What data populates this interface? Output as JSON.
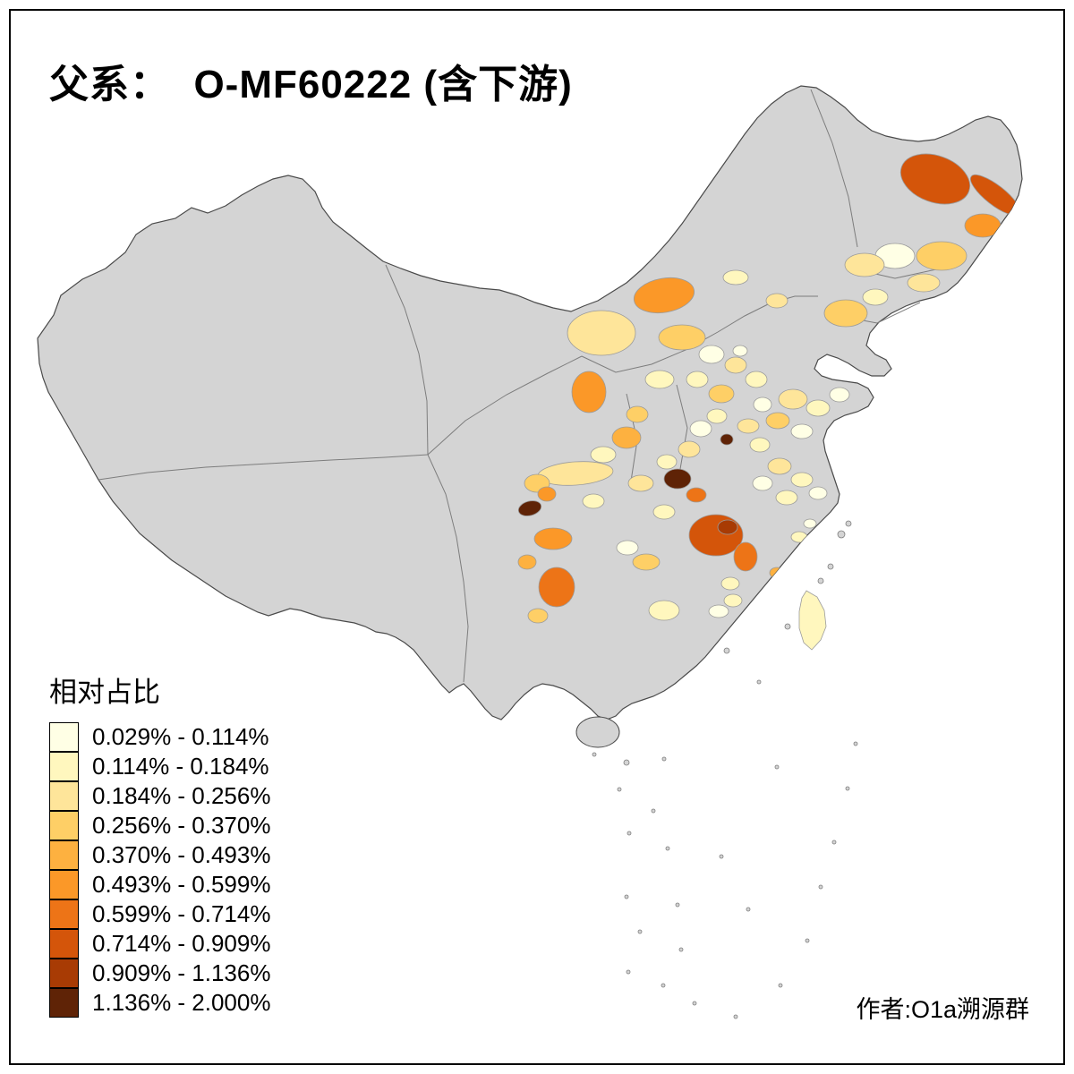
{
  "title": "父系：  O-MF60222 (含下游)",
  "author_credit": "作者:O1a溯源群",
  "legend": {
    "title": "相对占比",
    "bins": [
      {
        "label": "0.029% - 0.114%",
        "color": "#FFFFE5"
      },
      {
        "label": "0.114% - 0.184%",
        "color": "#FFF7BE"
      },
      {
        "label": "0.184% - 0.256%",
        "color": "#FEE59A"
      },
      {
        "label": "0.256% - 0.370%",
        "color": "#FECF66"
      },
      {
        "label": "0.370% - 0.493%",
        "color": "#FDB140"
      },
      {
        "label": "0.493% - 0.599%",
        "color": "#FB9828"
      },
      {
        "label": "0.599% - 0.714%",
        "color": "#ED7417"
      },
      {
        "label": "0.714% - 0.909%",
        "color": "#D4550A"
      },
      {
        "label": "0.909% - 1.136%",
        "color": "#A83B04"
      },
      {
        "label": "1.136% - 2.000%",
        "color": "#5F2306"
      }
    ]
  },
  "map": {
    "type": "choropleth",
    "base_fill": "#D4D4D4",
    "border_stroke": "#4A4A4A",
    "province_stroke": "#7D7D7D",
    "region_outline": "#9B9B9B",
    "region_bins": {
      "r1": 7,
      "r2": 7,
      "r3": 5,
      "r4": 3,
      "r5": 0,
      "r6": 2,
      "r7": 2,
      "r8": 3,
      "r9": 1,
      "r10": 5,
      "r11": 2,
      "r12": 3,
      "r13": 1,
      "r14": 2,
      "r15": 0,
      "r16": 2,
      "r17": 1,
      "r18": 3,
      "r19": 1,
      "r20": 0,
      "r21": 0,
      "r22": 5,
      "r23": 1,
      "r24": 4,
      "r25": 3,
      "r26": 2,
      "r27": 1,
      "r28": 0,
      "r29": 3,
      "r30": 0,
      "r31": 9,
      "r32": 0,
      "r33": 1,
      "r34": 2,
      "r35": 1,
      "r36": 2,
      "r37": 1,
      "r38": 2,
      "r39": 1,
      "r40": 0,
      "r41": 1,
      "r42": 0,
      "r43": 2,
      "r44": 3,
      "r45": 9,
      "r46": 6,
      "r47": 9,
      "r48": 5,
      "r49": 1,
      "r50": 1,
      "r51": 7,
      "r52": 8,
      "r53": 6,
      "r54": 3,
      "r55": 0,
      "r56": 5,
      "r57": 6,
      "r58": 4,
      "r59": 3,
      "r60": 1,
      "r61": 0,
      "r62": 1,
      "r63": 1,
      "r64": 4,
      "r65": 1,
      "r66": 0,
      "r67": 1,
      "r68": 1,
      "r69": 2
    }
  }
}
